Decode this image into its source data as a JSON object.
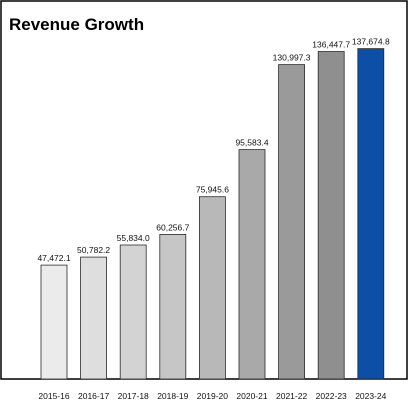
{
  "chart_data": {
    "type": "bar",
    "title": "Revenue Growth",
    "xlabel": "",
    "ylabel": "",
    "categories": [
      "2015-16",
      "2016-17",
      "2017-18",
      "2018-19",
      "2019-20",
      "2020-21",
      "2021-22",
      "2022-23",
      "2023-24"
    ],
    "values": [
      47472.1,
      50782.2,
      55834.0,
      60256.7,
      75945.6,
      95583.4,
      130997.3,
      136447.7,
      137674.8
    ],
    "value_labels": [
      "47,472.1",
      "50,782.2",
      "55,834.0",
      "60,256.7",
      "75,945.6",
      "95,583.4",
      "130,997.3",
      "136,447.7",
      "137,674.8"
    ],
    "ylim": [
      0,
      145000
    ],
    "grid": false,
    "bar_colors": [
      "#ebebeb",
      "#dedede",
      "#d3d3d3",
      "#c6c6c6",
      "#b8b8b8",
      "#a9a9a9",
      "#9a9a9a",
      "#8f8f8f",
      "#0d4ea6"
    ]
  }
}
